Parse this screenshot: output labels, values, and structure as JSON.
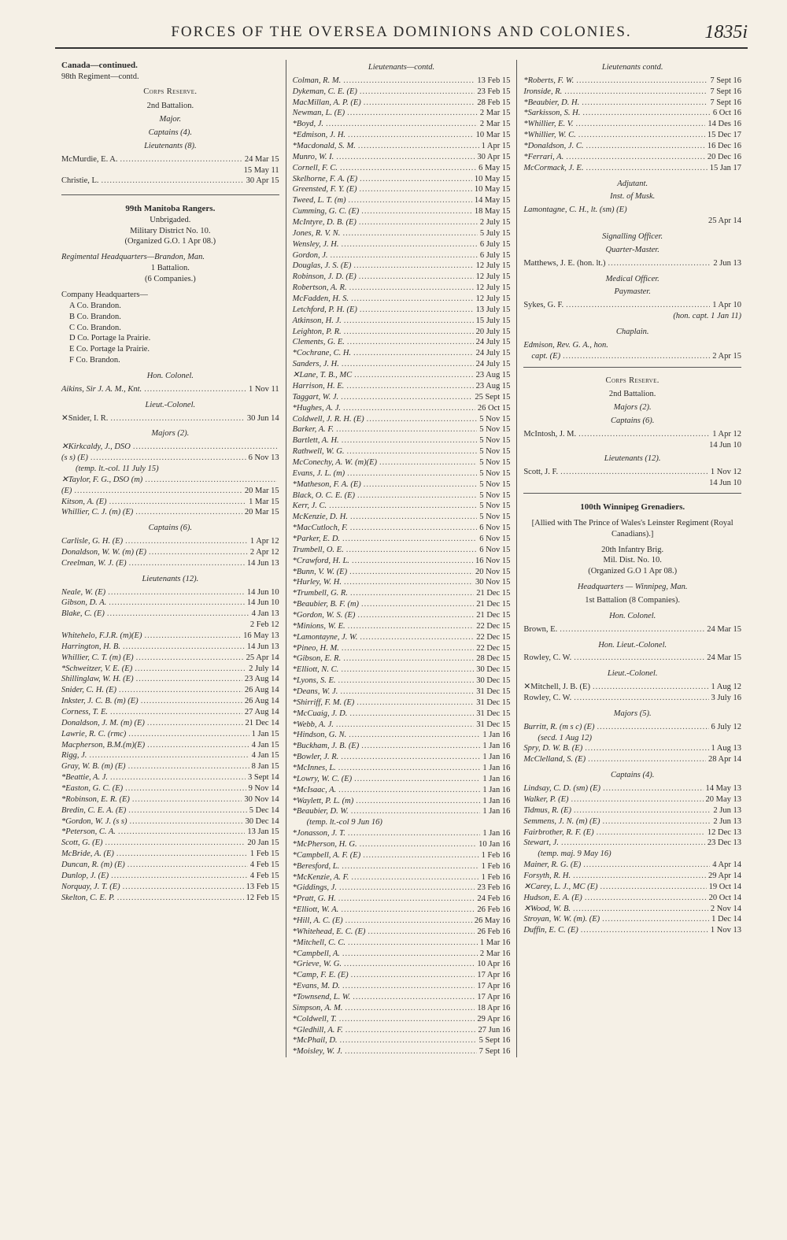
{
  "header": {
    "title": "FORCES OF THE OVERSEA DOMINIONS AND COLONIES.",
    "page": "1835i"
  },
  "col1": {
    "canada": "Canada—continued.",
    "reg98": "98th Regiment—contd.",
    "corpsReserve": "Corps Reserve.",
    "bn2": "2nd Battalion.",
    "major": "Major.",
    "captains4": "Captains (4).",
    "lieuts8": "Lieutenants (8).",
    "rows1": [
      {
        "n": "McMurdie, E. A.",
        "d": "24 Mar 15"
      },
      {
        "n": "",
        "d": "15 May 11"
      },
      {
        "n": "Christie, L.",
        "d": "30 Apr 15"
      }
    ],
    "reg99a": "99th Manitoba Rangers.",
    "reg99b": "Unbrigaded.",
    "milDist": "Military District No. 10.",
    "org": "(Organized G.O. 1 Apr 08.)",
    "regHQ": "Regimental Headquarters—Brandon, Man.",
    "bn1": "1 Battalion.",
    "coys6": "(6 Companies.)",
    "coyHQ": "Company Headquarters—",
    "coys": [
      "A Co. Brandon.",
      "B Co. Brandon.",
      "C Co. Brandon.",
      "D Co. Portage la Prairie.",
      "E Co. Portage la Prairie.",
      "F Co. Brandon."
    ],
    "honCol": "Hon. Colonel.",
    "aikins": {
      "n": "Aikins, Sir J. A. M., Knt.",
      "d": "1 Nov 11"
    },
    "ltCol": "Lieut.-Colonel.",
    "snider": {
      "n": "✕Snider, I. R.",
      "d": "30 Jun 14"
    },
    "majors2": "Majors (2).",
    "majRows": [
      {
        "n": "✕Kirkcaldy, J., DSO",
        "d": ""
      },
      {
        "n": "  (s s) (E)",
        "d": "6 Nov 13"
      },
      {
        "n": "  (temp. lt.-col. 11 July 15)",
        "d": ""
      },
      {
        "n": "✕Taylor, F. G., DSO (m)",
        "d": ""
      },
      {
        "n": "  (E)",
        "d": "20 Mar 15"
      },
      {
        "n": "Kitson, A. (E)",
        "d": "1 Mar 15"
      },
      {
        "n": "Whillier, C. J. (m) (E)",
        "d": "20 Mar 15"
      }
    ],
    "capt6": "Captains (6).",
    "captRows": [
      {
        "n": "Carlisle, G. H. (E)",
        "d": "1 Apr 12"
      },
      {
        "n": "Donaldson, W. W. (m) (E)",
        "d": "2 Apr 12"
      },
      {
        "n": "Creelman, W. J. (E)",
        "d": "14 Jun 13"
      }
    ],
    "lieuts12": "Lieutenants (12).",
    "ltRows": [
      {
        "n": "Neale, W. (E)",
        "d": "14 Jun 10"
      },
      {
        "n": "Gibson, D. A.",
        "d": "14 Jun 10"
      },
      {
        "n": "Blake, C. (E)",
        "d": "4 Jan 13"
      },
      {
        "n": "",
        "d": "2 Feb 12"
      },
      {
        "n": "Whitehelo, F.J.R. (m)(E)",
        "d": "16 May 13"
      },
      {
        "n": "Harrington, H. B.",
        "d": "14 Jun 13"
      },
      {
        "n": "Whillier, C. T. (m) (E)",
        "d": "25 Apr 14"
      },
      {
        "n": "*Schweitzer, V. E. (E)",
        "d": "2 July 14"
      },
      {
        "n": "Shillinglaw, W. H. (E)",
        "d": "23 Aug 14"
      },
      {
        "n": "Snider, C. H. (E)",
        "d": "26 Aug 14"
      },
      {
        "n": "Inkster, J. C. B. (m) (E)",
        "d": "26 Aug 14"
      },
      {
        "n": "Corness, T. E.",
        "d": "27 Aug 14"
      },
      {
        "n": "Donaldson, J. M. (m) (E)",
        "d": "21 Dec 14"
      },
      {
        "n": "Lawrie, R. C. (rmc)",
        "d": "1 Jan 15"
      },
      {
        "n": "Macpherson, B.M.(m)(E)",
        "d": "4 Jan 15"
      },
      {
        "n": "Rigg, J.",
        "d": "4 Jan 15"
      },
      {
        "n": "Gray, W. B. (m) (E)",
        "d": "8 Jan 15"
      },
      {
        "n": "*Beattie, A. J.",
        "d": "3 Sept 14"
      },
      {
        "n": "*Easton, G. C. (E)",
        "d": "9 Nov 14"
      },
      {
        "n": "*Robinson, E. R. (E)",
        "d": "30 Nov 14"
      },
      {
        "n": "Bredin, C. E. A. (E)",
        "d": "5 Dec 14"
      },
      {
        "n": "*Gordon, W. J. (s s)",
        "d": "30 Dec 14"
      },
      {
        "n": "*Peterson, C. A.",
        "d": "13 Jan 15"
      },
      {
        "n": "Scott, G. (E)",
        "d": "20 Jan 15"
      },
      {
        "n": "McBride, A. (E)",
        "d": "1 Feb 15"
      },
      {
        "n": "Duncan, R. (m) (E)",
        "d": "4 Feb 15"
      },
      {
        "n": "Dunlop, J. (E)",
        "d": "4 Feb 15"
      },
      {
        "n": "Norquay, J. T. (E)",
        "d": "13 Feb 15"
      },
      {
        "n": "Skelton, C. E. P.",
        "d": "12 Feb 15"
      }
    ]
  },
  "col2": {
    "hdr": "Lieutenants—contd.",
    "rows": [
      {
        "n": "Colman, R. M.",
        "d": "13 Feb 15"
      },
      {
        "n": "Dykeman, C. E. (E)",
        "d": "23 Feb 15"
      },
      {
        "n": "MacMillan, A. P. (E)",
        "d": "28 Feb 15"
      },
      {
        "n": "Newman, L. (E)",
        "d": "2 Mar 15"
      },
      {
        "n": "*Boyd, J.",
        "d": "2 Mar 15"
      },
      {
        "n": "*Edmison, J. H.",
        "d": "10 Mar 15"
      },
      {
        "n": "*Macdonald, S. M.",
        "d": "1 Apr 15"
      },
      {
        "n": "Munro, W. I.",
        "d": "30 Apr 15"
      },
      {
        "n": "Cornell, F. C.",
        "d": "6 May 15"
      },
      {
        "n": "Skelhorne, F. A. (E)",
        "d": "10 May 15"
      },
      {
        "n": "Greensted, F. Y. (E)",
        "d": "10 May 15"
      },
      {
        "n": "Tweed, L. T. (m)",
        "d": "14 May 15"
      },
      {
        "n": "Cumming, G. C. (E)",
        "d": "18 May 15"
      },
      {
        "n": "McIntyre, D. B. (E)",
        "d": "2 July 15"
      },
      {
        "n": "Jones, R. V. N.",
        "d": "5 July 15"
      },
      {
        "n": "Wensley, J. H.",
        "d": "6 July 15"
      },
      {
        "n": "Gordon, J.",
        "d": "6 July 15"
      },
      {
        "n": "Douglas, J. S. (E)",
        "d": "12 July 15"
      },
      {
        "n": "Robinson, J. D. (E)",
        "d": "12 July 15"
      },
      {
        "n": "Robertson, A. R.",
        "d": "12 July 15"
      },
      {
        "n": "McFadden, H. S.",
        "d": "12 July 15"
      },
      {
        "n": "Letchford, P. H. (E)",
        "d": "13 July 15"
      },
      {
        "n": "Atkinson, H. J.",
        "d": "15 July 15"
      },
      {
        "n": "Leighton, P. R.",
        "d": "20 July 15"
      },
      {
        "n": "Clements, G. E.",
        "d": "24 July 15"
      },
      {
        "n": "*Cochrane, C. H.",
        "d": "24 July 15"
      },
      {
        "n": "Sanders, J. H.",
        "d": "24 July 15"
      },
      {
        "n": "✕Lane, T. B., MC",
        "d": "23 Aug 15"
      },
      {
        "n": "Harrison, H. E.",
        "d": "23 Aug 15"
      },
      {
        "n": "Taggart, W. J.",
        "d": "25 Sept 15"
      },
      {
        "n": "*Hughes, A. J.",
        "d": "26 Oct 15"
      },
      {
        "n": "Coldwell, J. R. H. (E)",
        "d": "5 Nov 15"
      },
      {
        "n": "Barker, A. F.",
        "d": "5 Nov 15"
      },
      {
        "n": "Bartlett, A. H.",
        "d": "5 Nov 15"
      },
      {
        "n": "Rathwell, W. G.",
        "d": "5 Nov 15"
      },
      {
        "n": "McConechy, A. W. (m)(E)",
        "d": "5 Nov 15"
      },
      {
        "n": "Evans, J. L. (m)",
        "d": "5 Nov 15"
      },
      {
        "n": "*Matheson, F. A. (E)",
        "d": "5 Nov 15"
      },
      {
        "n": "Black, O. C. E. (E)",
        "d": "5 Nov 15"
      },
      {
        "n": "Kerr, J. C.",
        "d": "5 Nov 15"
      },
      {
        "n": "McKenzie, D. H.",
        "d": "5 Nov 15"
      },
      {
        "n": "*MacCutloch, F.",
        "d": "6 Nov 15"
      },
      {
        "n": "*Parker, E. D.",
        "d": "6 Nov 15"
      },
      {
        "n": "Trumbell, O. E.",
        "d": "6 Nov 15"
      },
      {
        "n": "*Crawford, H. L.",
        "d": "16 Nov 15"
      },
      {
        "n": "*Bunn, V. W. (E)",
        "d": "20 Nov 15"
      },
      {
        "n": "*Hurley, W. H.",
        "d": "30 Nov 15"
      },
      {
        "n": "*Trumbell, G. R.",
        "d": "21 Dec 15"
      },
      {
        "n": "*Beaubier, B. F. (m)",
        "d": "21 Dec 15"
      },
      {
        "n": "*Gordon, W. S. (E)",
        "d": "21 Dec 15"
      },
      {
        "n": "*Minions, W. E.",
        "d": "22 Dec 15"
      },
      {
        "n": "*Lamontayne, J. W.",
        "d": "22 Dec 15"
      },
      {
        "n": "*Pineo, H. M.",
        "d": "22 Dec 15"
      },
      {
        "n": "*Gibson, E. R.",
        "d": "28 Dec 15"
      },
      {
        "n": "*Elliott, N. C.",
        "d": "30 Dec 15"
      },
      {
        "n": "*Lyons, S. E.",
        "d": "30 Dec 15"
      },
      {
        "n": "*Deans, W. J.",
        "d": "31 Dec 15"
      },
      {
        "n": "*Shirriff, F. M. (E)",
        "d": "31 Dec 15"
      },
      {
        "n": "*McCuaig, J. D.",
        "d": "31 Dec 15"
      },
      {
        "n": "*Webb, A. J.",
        "d": "31 Dec 15"
      },
      {
        "n": "*Hindson, G. N.",
        "d": "1 Jan 16"
      },
      {
        "n": "*Buckham, J. B. (E)",
        "d": "1 Jan 16"
      },
      {
        "n": "*Bowler, J. R.",
        "d": "1 Jan 16"
      },
      {
        "n": "*McInnes, L.",
        "d": "1 Jan 16"
      },
      {
        "n": "*Lowry, W. C. (E)",
        "d": "1 Jan 16"
      },
      {
        "n": "*McIsaac, A.",
        "d": "1 Jan 16"
      },
      {
        "n": "*Waylett, P. L. (m)",
        "d": "1 Jan 16"
      },
      {
        "n": "*Beaubier, D. W.",
        "d": "1 Jan 16"
      },
      {
        "n": "  (temp. lt.-col 9 Jun 16)",
        "d": ""
      },
      {
        "n": "*Jonasson, J. T.",
        "d": "1 Jan 16"
      },
      {
        "n": "*McPherson, H. G.",
        "d": "10 Jan 16"
      },
      {
        "n": "*Campbell, A. F. (E)",
        "d": "1 Feb 16"
      },
      {
        "n": "*Beresford, L.",
        "d": "1 Feb 16"
      },
      {
        "n": "*McKenzie, A. F.",
        "d": "1 Feb 16"
      },
      {
        "n": "*Giddings, J.",
        "d": "23 Feb 16"
      },
      {
        "n": "*Pratt, G. H.",
        "d": "24 Feb 16"
      },
      {
        "n": "*Elliott, W. A.",
        "d": "26 Feb 16"
      },
      {
        "n": "*Hill, A. C. (E)",
        "d": "26 May 16"
      },
      {
        "n": "*Whitehead, E. C. (E)",
        "d": "26 Feb 16"
      },
      {
        "n": "*Mitchell, C. C.",
        "d": "1 Mar 16"
      },
      {
        "n": "*Campbell, A.",
        "d": "2 Mar 16"
      },
      {
        "n": "*Grieve, W. G.",
        "d": "10 Apr 16"
      },
      {
        "n": "*Camp, F. E. (E)",
        "d": "17 Apr 16"
      },
      {
        "n": "*Evans, M. D.",
        "d": "17 Apr 16"
      },
      {
        "n": "*Townsend, L. W.",
        "d": "17 Apr 16"
      },
      {
        "n": "Simpson, A. M.",
        "d": "18 Apr 16"
      },
      {
        "n": "*Coldwell, T.",
        "d": "29 Apr 16"
      },
      {
        "n": "*Gledhill, A. F.",
        "d": "27 Jun 16"
      },
      {
        "n": "*McPhail, D.",
        "d": "5 Sept 16"
      },
      {
        "n": "*Moisley, W. J.",
        "d": "7 Sept 16"
      }
    ]
  },
  "col3": {
    "hdr": "Lieutenants contd.",
    "rows1": [
      {
        "n": "*Roberts, F. W.",
        "d": "7 Sept 16"
      },
      {
        "n": "Ironside, R.",
        "d": "7 Sept 16"
      },
      {
        "n": "*Beaubier, D. H.",
        "d": "7 Sept 16"
      },
      {
        "n": "*Sarkisson, S. H.",
        "d": "6 Oct 16"
      },
      {
        "n": "*Whillier, E. V.",
        "d": "14 Des 16"
      },
      {
        "n": "*Whillier, W. C.",
        "d": "15 Dec 17"
      },
      {
        "n": "*Donaldson, J. C.",
        "d": "16 Dec 16"
      },
      {
        "n": "*Ferrari, A.",
        "d": "20 Dec 16"
      },
      {
        "n": "McCormack, J. E.",
        "d": "15 Jan 17"
      }
    ],
    "adj": "Adjutant.",
    "instMusk": "Inst. of Musk.",
    "lamont": {
      "n": "Lamontagne, C. H., lt. (sm) (E)",
      "d": "25 Apr 14"
    },
    "sigOff": "Signalling Officer.",
    "qm": "Quarter-Master.",
    "matthews": {
      "n": "Matthews, J. E. (hon. lt.)",
      "d": "2 Jun 13"
    },
    "medOff": "Medical Officer.",
    "paym": "Paymaster.",
    "sykes": {
      "n": "Sykes, G. F.",
      "d": "1 Apr 10"
    },
    "sykes2": "(hon. capt. 1 Jan 11)",
    "chaplain": "Chaplain.",
    "edmison": {
      "n": "Edmison, Rev. G. A., hon.",
      "d": ""
    },
    "edmison2": {
      "n": "capt. (E)",
      "d": "2 Apr 15"
    },
    "corpsRes": "Corps Reserve.",
    "bn2": "2nd Battalion.",
    "maj2": "Majors (2).",
    "capt6": "Captains (6).",
    "mcintosh": {
      "n": "McIntosh, J. M.",
      "d": "1 Apr 12"
    },
    "mcintosh2": "14 Jun 10",
    "lieuts12": "Lieutenants (12).",
    "scott": {
      "n": "Scott, J. F.",
      "d": "1 Nov 12"
    },
    "scott2": "14 Jun 10",
    "reg100": "100th Winnipeg Grenadiers.",
    "allied": "[Allied with The Prince of Wales's Leinster Regiment (Royal Canadians).]",
    "infBrig": "20th Infantry Brig.",
    "milDist": "Mil. Dist. No. 10.",
    "org": "(Organized G.O 1 Apr 08.)",
    "hq": "Headquarters — Winnipeg, Man.",
    "bn1": "1st Battalion (8 Companies).",
    "honCol": "Hon. Colonel.",
    "brown": {
      "n": "Brown, E.",
      "d": "24 Mar 15"
    },
    "honLtCol": "Hon. Lieut.-Colonel.",
    "rowley": {
      "n": "Rowley, C. W.",
      "d": "24 Mar 15"
    },
    "ltCol": "Lieut.-Colonel.",
    "mitchell": {
      "n": "✕Mitchell, J. B. (E)",
      "d": "1 Aug 12"
    },
    "rowley2": {
      "n": "Rowley, C. W.",
      "d": "3 July 16"
    },
    "maj5": "Majors (5).",
    "majRows": [
      {
        "n": "Burritt, R. (m s c) (E)",
        "d": "6 July 12"
      },
      {
        "n": "  (secd. 1 Aug 12)",
        "d": ""
      },
      {
        "n": "Spry, D. W. B. (E)",
        "d": "1 Aug 13"
      },
      {
        "n": "McClelland, S. (E)",
        "d": "28 Apr 14"
      }
    ],
    "capt4": "Captains (4).",
    "captRows": [
      {
        "n": "Lindsay, C. D. (sm) (E)",
        "d": "14 May 13"
      },
      {
        "n": "Walker, P. (E)",
        "d": "20 May 13"
      },
      {
        "n": "Tidmus, R. (E)",
        "d": "2 Jun 13"
      },
      {
        "n": "Semmens, J. N. (m) (E)",
        "d": "2 Jun 13"
      },
      {
        "n": "Fairbrother, R. F. (E)",
        "d": "12 Dec 13"
      },
      {
        "n": "Stewart, J.",
        "d": "23 Dec 13"
      },
      {
        "n": "  (temp. maj. 9 May 16)",
        "d": ""
      },
      {
        "n": "Mainer, R. G. (E)",
        "d": "4 Apr 14"
      },
      {
        "n": "Forsyth, R. H.",
        "d": "29 Apr 14"
      },
      {
        "n": "✕Carey, L. J., MC (E)",
        "d": "19 Oct 14"
      },
      {
        "n": "Hudson, E. A. (E)",
        "d": "20 Oct 14"
      },
      {
        "n": "✕Wood, W. B.",
        "d": "2 Nov 14"
      },
      {
        "n": "Stroyan, W. W. (m). (E)",
        "d": "1 Dec 14"
      },
      {
        "n": "Duffin, E. C. (E)",
        "d": "1 Nov 13"
      }
    ]
  }
}
